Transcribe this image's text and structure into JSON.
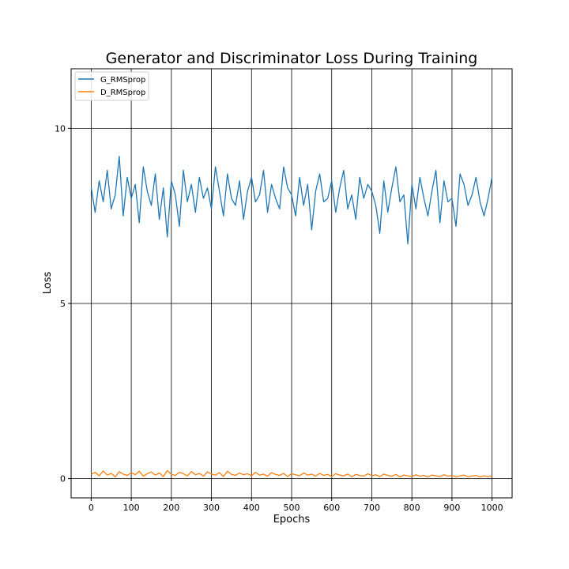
{
  "chart_data": {
    "type": "line",
    "title": "Generator and Discriminator Loss During Training",
    "xlabel": "Epochs",
    "ylabel": "Loss",
    "xlim": [
      -50,
      1050
    ],
    "ylim": [
      -0.55,
      11.7
    ],
    "xticks": [
      0,
      100,
      200,
      300,
      400,
      500,
      600,
      700,
      800,
      900,
      1000
    ],
    "yticks": [
      0,
      5,
      10
    ],
    "grid": true,
    "legend_position": "top-left",
    "x_step": 10,
    "series": [
      {
        "name": "G_RMSprop",
        "color": "#1f77b4",
        "values": [
          8.3,
          7.6,
          8.5,
          7.9,
          8.8,
          7.7,
          8.1,
          9.2,
          7.5,
          8.6,
          8.0,
          8.4,
          7.3,
          8.9,
          8.2,
          7.8,
          8.7,
          7.4,
          8.3,
          6.9,
          8.5,
          8.1,
          7.2,
          8.8,
          7.9,
          8.4,
          7.6,
          8.6,
          8.0,
          8.3,
          7.7,
          8.9,
          8.2,
          7.5,
          8.7,
          8.0,
          7.8,
          8.5,
          7.4,
          8.2,
          8.6,
          7.9,
          8.1,
          8.8,
          7.6,
          8.4,
          8.0,
          7.7,
          8.9,
          8.3,
          8.1,
          7.5,
          8.6,
          7.8,
          8.4,
          7.1,
          8.2,
          8.7,
          7.9,
          8.0,
          8.5,
          7.6,
          8.3,
          8.8,
          7.7,
          8.1,
          7.4,
          8.6,
          8.0,
          8.4,
          8.2,
          7.8,
          7.0,
          8.5,
          7.6,
          8.3,
          8.9,
          7.9,
          8.1,
          6.7,
          8.4,
          7.7,
          8.6,
          8.0,
          7.5,
          8.2,
          8.8,
          7.3,
          8.5,
          7.9,
          8.0,
          7.2,
          8.7,
          8.4,
          7.8,
          8.1,
          8.6,
          7.9,
          7.5,
          8.0,
          8.6
        ]
      },
      {
        "name": "D_RMSprop",
        "color": "#ff7f0e",
        "values": [
          0.12,
          0.18,
          0.08,
          0.22,
          0.1,
          0.15,
          0.05,
          0.2,
          0.13,
          0.09,
          0.17,
          0.11,
          0.21,
          0.07,
          0.14,
          0.19,
          0.1,
          0.16,
          0.06,
          0.23,
          0.12,
          0.09,
          0.18,
          0.14,
          0.08,
          0.2,
          0.11,
          0.15,
          0.07,
          0.19,
          0.13,
          0.1,
          0.17,
          0.06,
          0.21,
          0.12,
          0.09,
          0.16,
          0.11,
          0.14,
          0.08,
          0.18,
          0.1,
          0.13,
          0.07,
          0.17,
          0.12,
          0.09,
          0.15,
          0.06,
          0.14,
          0.11,
          0.08,
          0.16,
          0.1,
          0.13,
          0.07,
          0.15,
          0.09,
          0.12,
          0.06,
          0.14,
          0.1,
          0.08,
          0.13,
          0.05,
          0.12,
          0.09,
          0.07,
          0.14,
          0.08,
          0.11,
          0.06,
          0.13,
          0.09,
          0.07,
          0.12,
          0.05,
          0.1,
          0.08,
          0.06,
          0.11,
          0.07,
          0.09,
          0.05,
          0.1,
          0.08,
          0.06,
          0.11,
          0.07,
          0.09,
          0.05,
          0.08,
          0.1,
          0.06,
          0.07,
          0.09,
          0.05,
          0.08,
          0.06,
          0.07
        ]
      }
    ]
  }
}
